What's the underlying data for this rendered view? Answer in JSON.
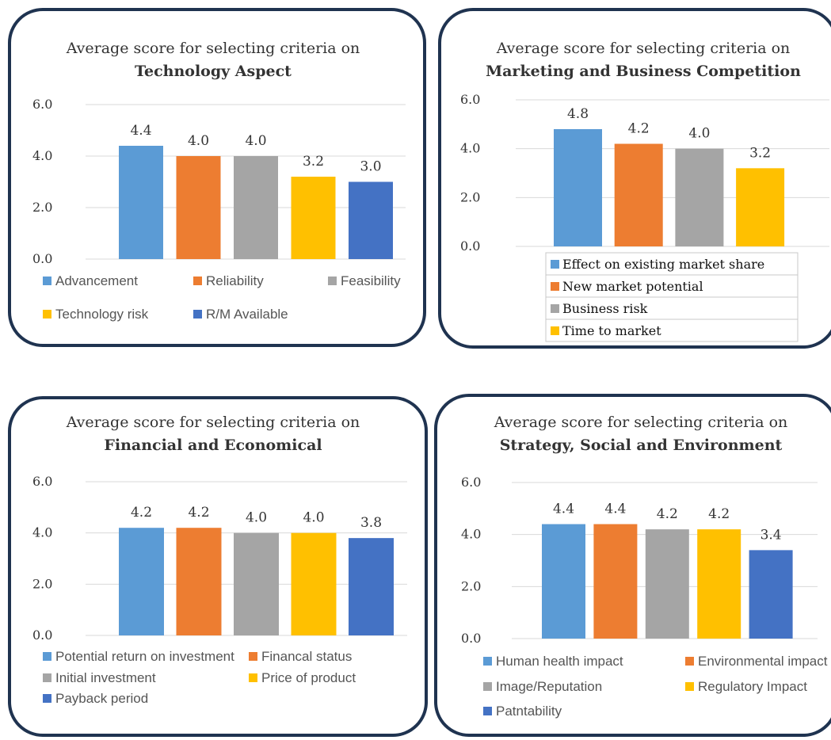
{
  "chart_data": [
    {
      "type": "bar",
      "title": "Average score for selecting criteria on",
      "subtitle": "Technology Aspect",
      "series": [
        {
          "name": "Advancement",
          "values": [
            4.4
          ],
          "color": "#5b9bd5"
        },
        {
          "name": "Reliability",
          "values": [
            4.0
          ],
          "color": "#ed7d31"
        },
        {
          "name": "Feasibility",
          "values": [
            4.0
          ],
          "color": "#a5a5a5"
        },
        {
          "name": "Technology risk",
          "values": [
            3.2
          ],
          "color": "#ffc000"
        },
        {
          "name": "R/M Available",
          "values": [
            3.0
          ],
          "color": "#4472c4"
        }
      ],
      "data_labels": [
        "4.4",
        "4.0",
        "4.0",
        "3.2",
        "3.0"
      ],
      "y_ticks": [
        "0.0",
        "2.0",
        "4.0",
        "6.0"
      ],
      "ylim": [
        0,
        6
      ],
      "grid": true,
      "legend_position": "bottom"
    },
    {
      "type": "bar",
      "title": "Average score for selecting criteria on",
      "subtitle": "Marketing and Business Competition",
      "series": [
        {
          "name": "Effect on existing market share",
          "values": [
            4.8
          ],
          "color": "#5b9bd5"
        },
        {
          "name": "New market potential",
          "values": [
            4.2
          ],
          "color": "#ed7d31"
        },
        {
          "name": "Business risk",
          "values": [
            4.0
          ],
          "color": "#a5a5a5"
        },
        {
          "name": "Time to market",
          "values": [
            3.2
          ],
          "color": "#ffc000"
        }
      ],
      "data_labels": [
        "4.8",
        "4.2",
        "4.0",
        "3.2"
      ],
      "y_ticks": [
        "0.0",
        "2.0",
        "4.0",
        "6.0"
      ],
      "ylim": [
        0,
        6
      ],
      "grid": true,
      "legend_position": "bottom-right"
    },
    {
      "type": "bar",
      "title": "Average score for selecting criteria on",
      "subtitle": "Financial and Economical",
      "series": [
        {
          "name": "Potential return on investment",
          "values": [
            4.2
          ],
          "color": "#5b9bd5"
        },
        {
          "name": "Financal status",
          "values": [
            4.2
          ],
          "color": "#ed7d31"
        },
        {
          "name": "Initial investment",
          "values": [
            4.0
          ],
          "color": "#a5a5a5"
        },
        {
          "name": "Price of product",
          "values": [
            4.0
          ],
          "color": "#ffc000"
        },
        {
          "name": "Payback period",
          "values": [
            3.8
          ],
          "color": "#4472c4"
        }
      ],
      "data_labels": [
        "4.2",
        "4.2",
        "4.0",
        "4.0",
        "3.8"
      ],
      "y_ticks": [
        "0.0",
        "2.0",
        "4.0",
        "6.0"
      ],
      "ylim": [
        0,
        6
      ],
      "grid": true,
      "legend_position": "bottom"
    },
    {
      "type": "bar",
      "title": "Average score for selecting criteria on",
      "subtitle": "Strategy, Social and Environment",
      "series": [
        {
          "name": "Human health impact",
          "values": [
            4.4
          ],
          "color": "#5b9bd5"
        },
        {
          "name": "Environmental impact",
          "values": [
            4.4
          ],
          "color": "#ed7d31"
        },
        {
          "name": "Image/Reputation",
          "values": [
            4.2
          ],
          "color": "#a5a5a5"
        },
        {
          "name": "Regulatory Impact",
          "values": [
            4.2
          ],
          "color": "#ffc000"
        },
        {
          "name": "Patntability",
          "values": [
            3.4
          ],
          "color": "#4472c4"
        }
      ],
      "data_labels": [
        "4.4",
        "4.4",
        "4.2",
        "4.2",
        "3.4"
      ],
      "y_ticks": [
        "0.0",
        "2.0",
        "4.0",
        "6.0"
      ],
      "ylim": [
        0,
        6
      ],
      "grid": true,
      "legend_position": "bottom"
    }
  ]
}
